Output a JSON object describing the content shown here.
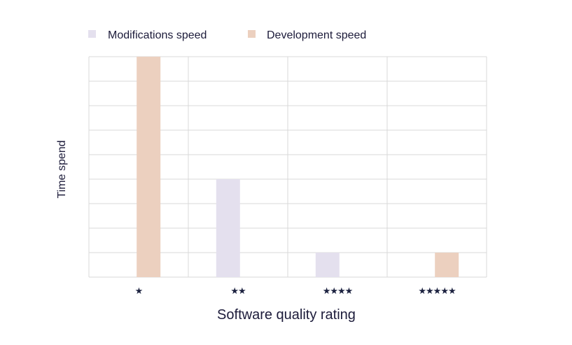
{
  "chart_data": {
    "type": "bar",
    "categories": [
      "★",
      "★★",
      "★★★★",
      "★★★★★"
    ],
    "series": [
      {
        "name": "Modifications speed",
        "color": "#e4e0ee",
        "values": [
          0,
          4,
          1,
          0
        ]
      },
      {
        "name": "Development speed",
        "color": "#ecd0bf",
        "values": [
          9,
          0,
          0,
          1
        ]
      }
    ],
    "xlabel": "Software quality rating",
    "ylabel": "Time spend",
    "ylim": [
      0,
      9
    ],
    "grid": true,
    "legend_position": "top-left",
    "colors": {
      "grid": "#d9d9d9",
      "text": "#1c1b3a"
    }
  }
}
